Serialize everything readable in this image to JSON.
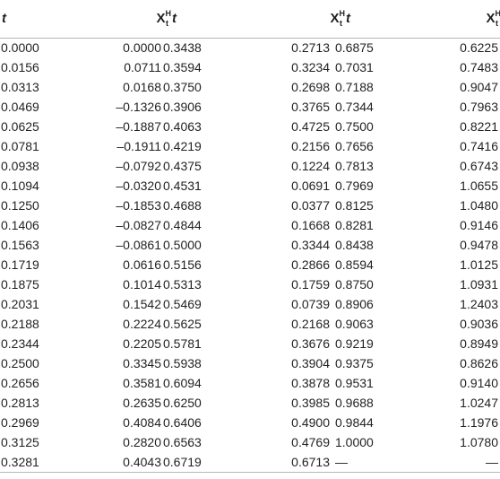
{
  "table": {
    "headers": [
      {
        "kind": "t",
        "text": "t"
      },
      {
        "kind": "x",
        "base": "X",
        "sup": "H",
        "sub": "t"
      },
      {
        "kind": "t",
        "text": "t"
      },
      {
        "kind": "x",
        "base": "X",
        "sup": "H",
        "sub": "t"
      },
      {
        "kind": "t",
        "text": "t"
      },
      {
        "kind": "x",
        "base": "X",
        "sup": "H",
        "sub": "t"
      }
    ],
    "rows": [
      [
        "0.0000",
        "0.0000",
        "0.3438",
        "0.2713",
        "0.6875",
        "0.6225"
      ],
      [
        "0.0156",
        "0.0711",
        "0.3594",
        "0.3234",
        "0.7031",
        "0.7483"
      ],
      [
        "0.0313",
        "0.0168",
        "0.3750",
        "0.2698",
        "0.7188",
        "0.9047"
      ],
      [
        "0.0469",
        "–0.1326",
        "0.3906",
        "0.3765",
        "0.7344",
        "0.7963"
      ],
      [
        "0.0625",
        "–0.1887",
        "0.4063",
        "0.4725",
        "0.7500",
        "0.8221"
      ],
      [
        "0.0781",
        "–0.1911",
        "0.4219",
        "0.2156",
        "0.7656",
        "0.7416"
      ],
      [
        "0.0938",
        "–0.0792",
        "0.4375",
        "0.1224",
        "0.7813",
        "0.6743"
      ],
      [
        "0.1094",
        "–0.0320",
        "0.4531",
        "0.0691",
        "0.7969",
        "1.0655"
      ],
      [
        "0.1250",
        "–0.1853",
        "0.4688",
        "0.0377",
        "0.8125",
        "1.0480"
      ],
      [
        "0.1406",
        "–0.0827",
        "0.4844",
        "0.1668",
        "0.8281",
        "0.9146"
      ],
      [
        "0.1563",
        "–0.0861",
        "0.5000",
        "0.3344",
        "0.8438",
        "0.9478"
      ],
      [
        "0.1719",
        "0.0616",
        "0.5156",
        "0.2866",
        "0.8594",
        "1.0125"
      ],
      [
        "0.1875",
        "0.1014",
        "0.5313",
        "0.1759",
        "0.8750",
        "1.0931"
      ],
      [
        "0.2031",
        "0.1542",
        "0.5469",
        "0.0739",
        "0.8906",
        "1.2403"
      ],
      [
        "0.2188",
        "0.2224",
        "0.5625",
        "0.2168",
        "0.9063",
        "0.9036"
      ],
      [
        "0.2344",
        "0.2205",
        "0.5781",
        "0.3676",
        "0.9219",
        "0.8949"
      ],
      [
        "0.2500",
        "0.3345",
        "0.5938",
        "0.3904",
        "0.9375",
        "0.8626"
      ],
      [
        "0.2656",
        "0.3581",
        "0.6094",
        "0.3878",
        "0.9531",
        "0.9140"
      ],
      [
        "0.2813",
        "0.2635",
        "0.6250",
        "0.3985",
        "0.9688",
        "1.0247"
      ],
      [
        "0.2969",
        "0.4084",
        "0.6406",
        "0.4900",
        "0.9844",
        "1.1976"
      ],
      [
        "0.3125",
        "0.2820",
        "0.6563",
        "0.4769",
        "1.0000",
        "1.0780"
      ],
      [
        "0.3281",
        "0.4043",
        "0.6719",
        "0.6713",
        "—",
        "—"
      ]
    ]
  }
}
